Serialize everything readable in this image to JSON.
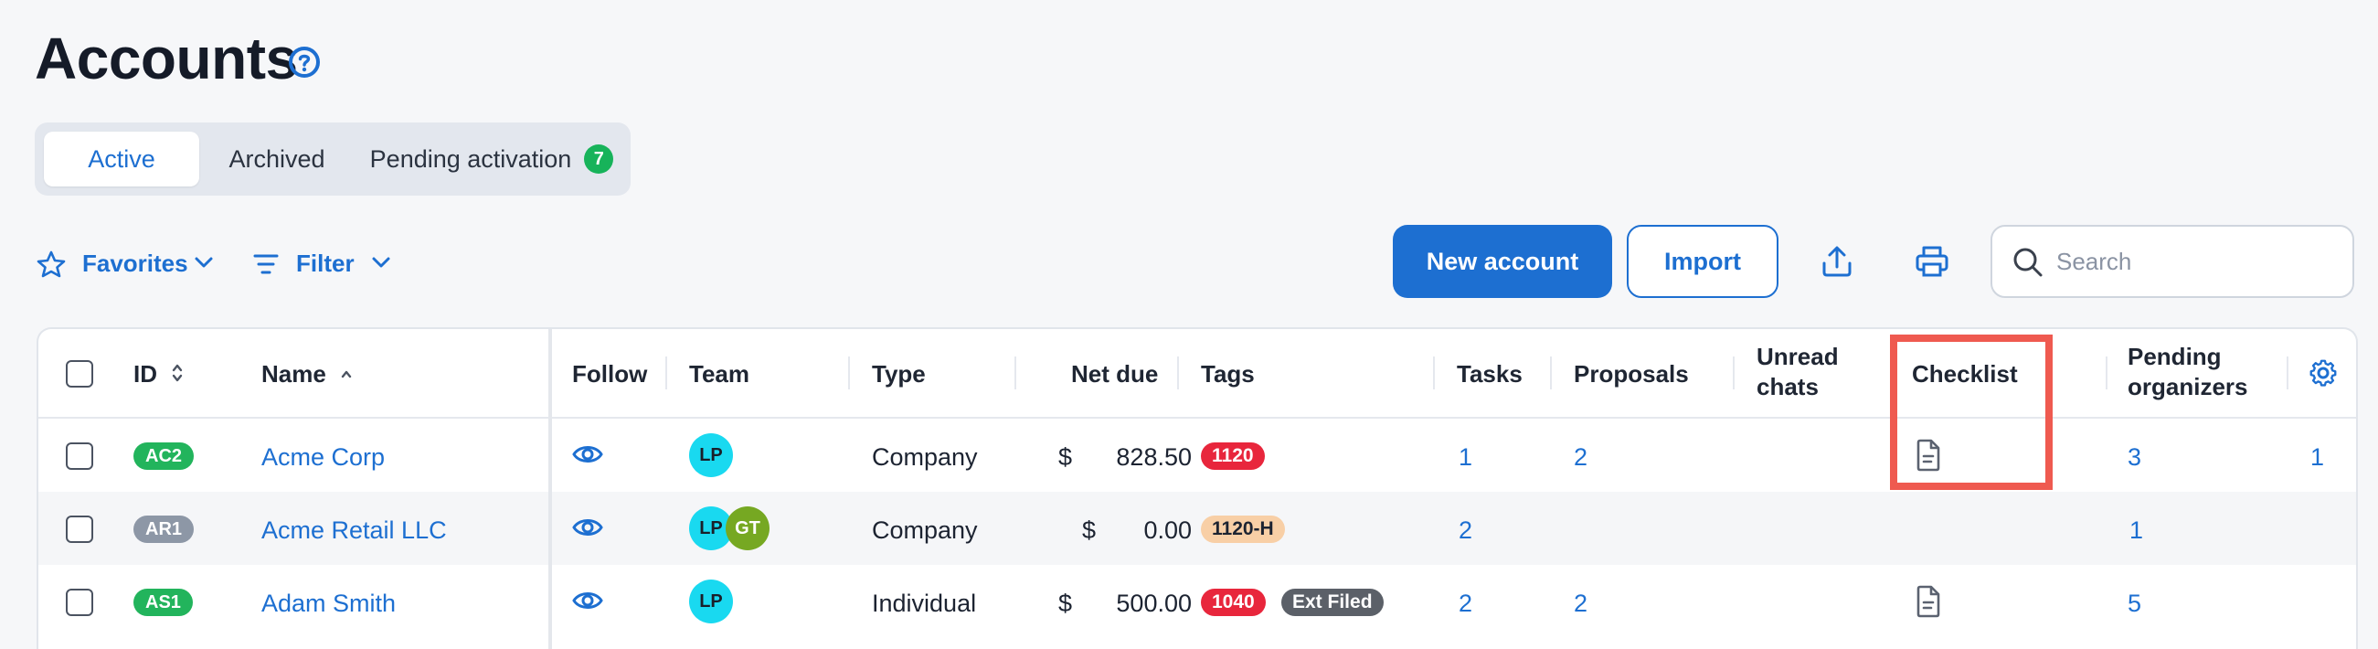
{
  "page": {
    "title": "Accounts"
  },
  "tabs": [
    {
      "label": "Active",
      "active": true
    },
    {
      "label": "Archived",
      "active": false
    },
    {
      "label": "Pending activation",
      "badge": "7",
      "active": false
    }
  ],
  "toolbar": {
    "favorites_label": "Favorites",
    "filter_label": "Filter",
    "new_account_label": "New account",
    "import_label": "Import",
    "search_placeholder": "Search"
  },
  "table": {
    "columns": {
      "id": "ID",
      "name": "Name",
      "follow": "Follow",
      "team": "Team",
      "type": "Type",
      "net_due": "Net due",
      "tags": "Tags",
      "tasks": "Tasks",
      "proposals": "Proposals",
      "unread_chats_1": "Unread",
      "unread_chats_2": "chats",
      "checklist": "Checklist",
      "pending_organizers_1": "Pending",
      "pending_organizers_2": "organizers"
    },
    "rows": [
      {
        "id": "AC2",
        "id_color": "#22b45c",
        "name": "Acme Corp",
        "team": [
          "LP"
        ],
        "type": "Company",
        "currency": "$",
        "net_due": "828.50",
        "tags": [
          {
            "label": "1120",
            "bg": "#e8263c",
            "fg": "#ffffff"
          }
        ],
        "tasks": "1",
        "proposals": "2",
        "has_checklist": true,
        "pending_organizers": "3",
        "extra": "1"
      },
      {
        "id": "AR1",
        "id_color": "#8d97a6",
        "name": "Acme Retail LLC",
        "team": [
          "LP",
          "GT"
        ],
        "type": "Company",
        "currency": "$",
        "net_due": "0.00",
        "tags": [
          {
            "label": "1120-H",
            "bg": "#f8cfa6",
            "fg": "#1c2331"
          }
        ],
        "tasks": "2",
        "proposals": "",
        "has_checklist": false,
        "pending_organizers": "1",
        "extra": ""
      },
      {
        "id": "AS1",
        "id_color": "#22b45c",
        "name": "Adam Smith",
        "team": [
          "LP"
        ],
        "type": "Individual",
        "currency": "$",
        "net_due": "500.00",
        "tags": [
          {
            "label": "1040",
            "bg": "#e8263c",
            "fg": "#ffffff"
          },
          {
            "label": "Ext Filed",
            "bg": "#5b6068",
            "fg": "#ffffff"
          }
        ],
        "tasks": "2",
        "proposals": "2",
        "has_checklist": true,
        "pending_organizers": "5",
        "extra": ""
      }
    ]
  },
  "colors": {
    "accent": "#1d6fd1",
    "badge_green": "#17b35a",
    "avatar_lp": "#19d9f0",
    "avatar_gt": "#76a822",
    "highlight": "#ef5a50"
  }
}
